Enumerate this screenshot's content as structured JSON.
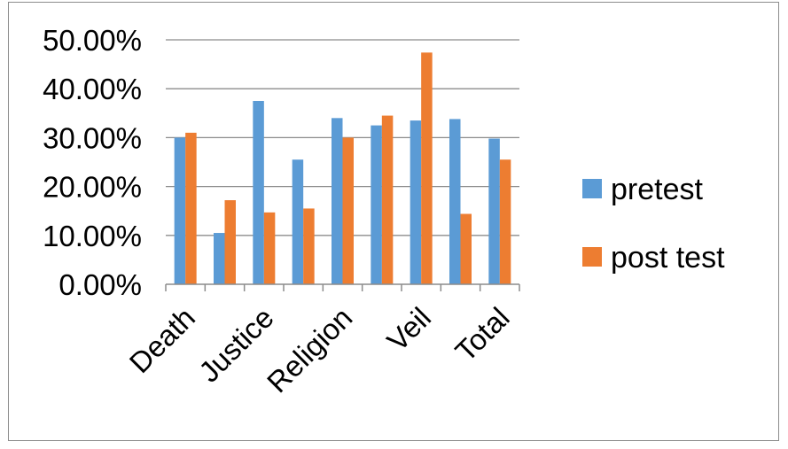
{
  "chart_data": {
    "type": "bar",
    "title": "",
    "xlabel": "",
    "ylabel": "",
    "ylim": [
      0,
      0.5
    ],
    "yticks": [
      "0.00%",
      "10.00%",
      "20.00%",
      "30.00%",
      "40.00%",
      "50.00%"
    ],
    "categories": [
      "Death",
      "",
      "Justice",
      "",
      "Religion",
      "",
      "Veil",
      "",
      "Total"
    ],
    "grid": true,
    "legend_position": "right",
    "series": [
      {
        "name": "pretest",
        "color": "#5b9bd5",
        "values": [
          0.3,
          0.105,
          0.375,
          0.255,
          0.34,
          0.325,
          0.335,
          0.338,
          0.298
        ]
      },
      {
        "name": "post test",
        "color": "#ed7d31",
        "values": [
          0.31,
          0.172,
          0.147,
          0.155,
          0.3,
          0.345,
          0.474,
          0.144,
          0.255
        ]
      }
    ]
  }
}
